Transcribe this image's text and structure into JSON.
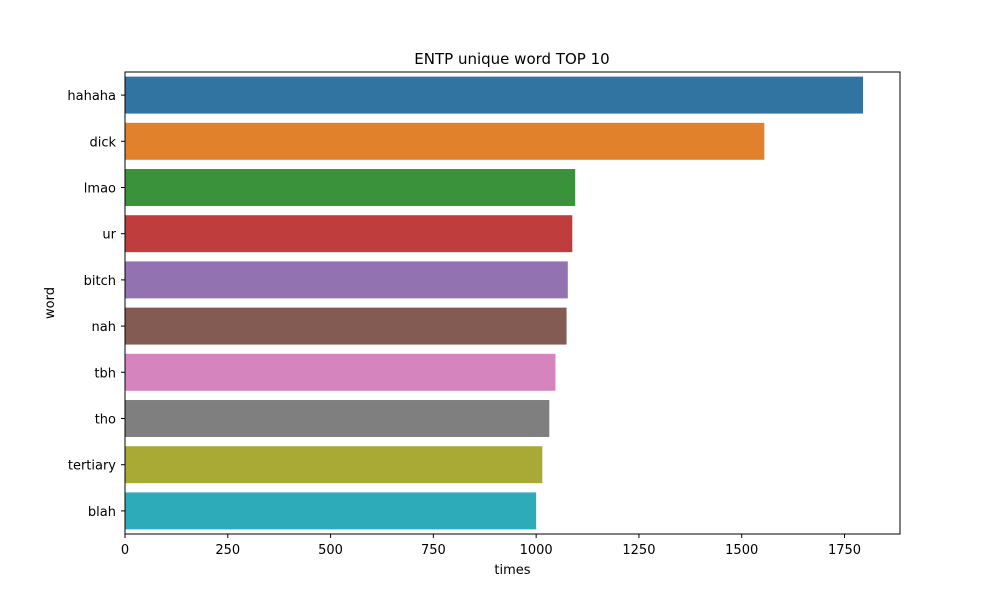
{
  "chart_data": {
    "type": "bar",
    "orientation": "horizontal",
    "title": "ENTP unique word TOP 10",
    "xlabel": "times",
    "ylabel": "word",
    "categories": [
      "hahaha",
      "dick",
      "lmao",
      "ur",
      "bitch",
      "nah",
      "tbh",
      "tho",
      "tertiary",
      "blah"
    ],
    "values": [
      1795,
      1555,
      1095,
      1088,
      1077,
      1074,
      1047,
      1032,
      1015,
      1000
    ],
    "colors": [
      "#3274a1",
      "#e1812c",
      "#3a923a",
      "#c03d3e",
      "#9372b2",
      "#845b53",
      "#d684bd",
      "#7f7f7f",
      "#a9aa35",
      "#2eabb8"
    ],
    "xlim": [
      0,
      1885
    ],
    "xticks": [
      0,
      250,
      500,
      750,
      1000,
      1250,
      1500,
      1750
    ],
    "grid": false,
    "legend": false
  }
}
